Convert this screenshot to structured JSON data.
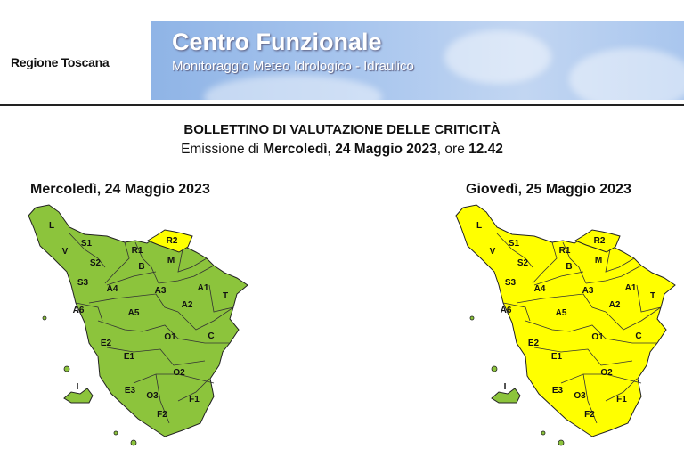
{
  "header": {
    "org": "Regione Toscana",
    "banner_title": "Centro Funzionale",
    "banner_subtitle": "Monitoraggio Meteo Idrologico - Idraulico"
  },
  "bulletin": {
    "title": "BOLLETTINO DI VALUTAZIONE DELLE CRITICITÀ",
    "issue_prefix": "Emissione di ",
    "issue_date": "Mercoledì, 24 Maggio 2023",
    "issue_mid": ", ore ",
    "issue_time": "12.42"
  },
  "colors": {
    "green": "#8cc43c",
    "yellow": "#ffff00"
  },
  "maps": [
    {
      "date": "Mercoledì, 24 Maggio 2023",
      "default_level": "green",
      "exceptions": {
        "R2": "yellow"
      }
    },
    {
      "date": "Giovedì, 25 Maggio 2023",
      "default_level": "yellow",
      "exceptions": {
        "I": "green"
      }
    }
  ],
  "zones": [
    "L",
    "S1",
    "V",
    "S2",
    "R1",
    "R2",
    "B",
    "M",
    "S3",
    "A4",
    "A3",
    "A1",
    "T",
    "A2",
    "A6",
    "A5",
    "C",
    "O1",
    "E2",
    "E1",
    "O2",
    "I",
    "E3",
    "O3",
    "F1",
    "F2"
  ]
}
